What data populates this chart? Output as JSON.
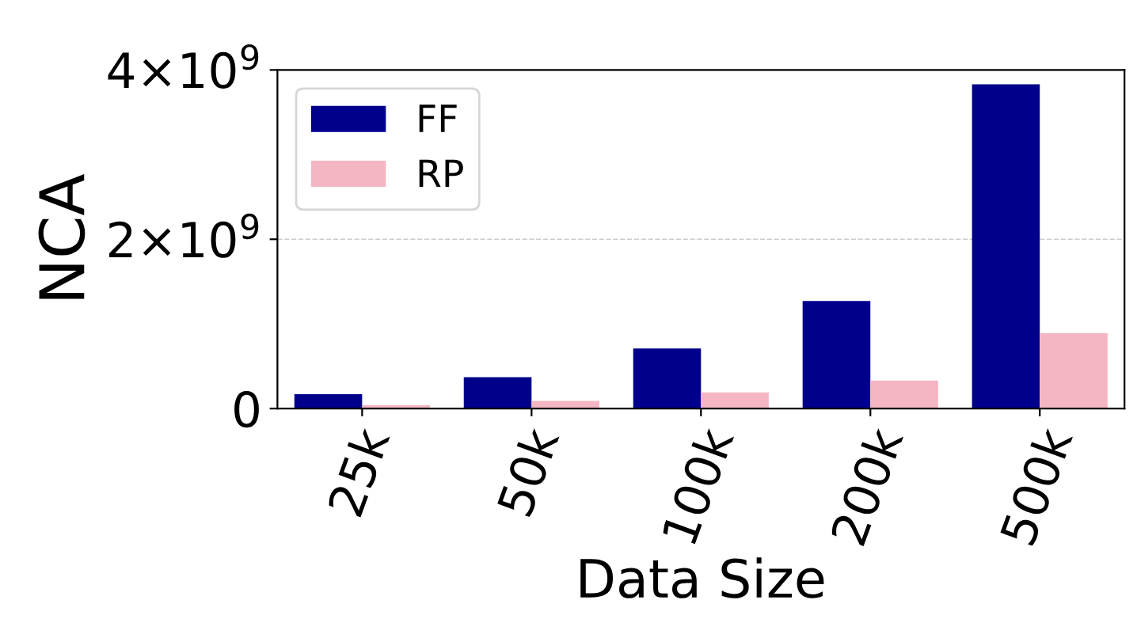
{
  "chart_data": {
    "type": "bar",
    "xlabel": "Data Size",
    "ylabel": "NCA",
    "categories": [
      "25k",
      "50k",
      "100k",
      "200k",
      "500k"
    ],
    "series": [
      {
        "name": "FF",
        "color": "#00008b",
        "values": [
          170000000.0,
          370000000.0,
          710000000.0,
          1270000000.0,
          3830000000.0
        ]
      },
      {
        "name": "RP",
        "color": "#f4b6c2",
        "values": [
          40000000.0,
          90000000.0,
          190000000.0,
          330000000.0,
          890000000.0
        ]
      }
    ],
    "ylim": [
      0,
      4000000000.0
    ],
    "yticks": [
      0,
      {
        "value": 2000000000.0,
        "label": "2×10$^{9}$"
      },
      {
        "value": 4000000000.0,
        "label": "4×10$^{9}$"
      }
    ],
    "grid": "y",
    "legend": "top left"
  }
}
